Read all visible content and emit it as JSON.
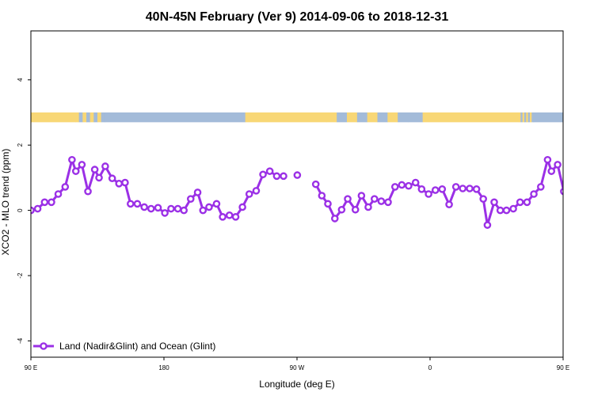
{
  "chart_data": {
    "type": "line",
    "title": "40N-45N February (Ver 9)   2014-09-06 to 2018-12-31",
    "xlabel": "Longitude (deg E)",
    "ylabel": "XCO2 - MLO trend (ppm)",
    "xlim": [
      90,
      450
    ],
    "ylim": [
      -4.5,
      5.5
    ],
    "xticks": [
      {
        "value": 90,
        "label": "90 E"
      },
      {
        "value": 180,
        "label": "180"
      },
      {
        "value": 270,
        "label": "90 W"
      },
      {
        "value": 360,
        "label": "0"
      },
      {
        "value": 450,
        "label": "90 E"
      },
      {
        "value": 540,
        "label": "180"
      }
    ],
    "yticks": [
      {
        "value": -4,
        "label": "-4"
      },
      {
        "value": -2,
        "label": "-2"
      },
      {
        "value": 0,
        "label": "0"
      },
      {
        "value": 2,
        "label": "2"
      },
      {
        "value": 4,
        "label": "4"
      }
    ],
    "grid": false,
    "legend_position": "bottom-left",
    "colors": {
      "series": "#9b30e6",
      "land": "#f8d776",
      "ocean": "#a3bbd9"
    },
    "land_ocean_strip": {
      "y_range": [
        2.7,
        3.0
      ],
      "segments": [
        {
          "x0": 90,
          "x1": 120,
          "type": "land"
        },
        {
          "x0": 120,
          "x1": 140,
          "type": "mixed"
        },
        {
          "x0": 140,
          "x1": 235,
          "type": "ocean"
        },
        {
          "x0": 235,
          "x1": 290,
          "type": "land"
        },
        {
          "x0": 290,
          "x1": 345,
          "type": "mixed"
        },
        {
          "x0": 345,
          "x1": 355,
          "type": "ocean"
        },
        {
          "x0": 355,
          "x1": 420,
          "type": "land"
        },
        {
          "x0": 420,
          "x1": 430,
          "type": "mixed"
        },
        {
          "x0": 430,
          "x1": 450,
          "type": "ocean"
        }
      ]
    },
    "series": [
      {
        "name": "Land (Nadir&Glint) and Ocean (Glint)",
        "points": [
          [
            90,
            0.0
          ],
          [
            94.6,
            0.05
          ],
          [
            99.3,
            0.25
          ],
          [
            103.9,
            0.25
          ],
          [
            108.5,
            0.5
          ],
          [
            113.2,
            0.72
          ],
          [
            117.8,
            1.55
          ],
          [
            120.4,
            1.2
          ],
          [
            124.5,
            1.4
          ],
          [
            128.6,
            0.58
          ],
          [
            133.2,
            1.25
          ],
          [
            136.1,
            1.0
          ],
          [
            140.3,
            1.35
          ],
          [
            145.0,
            0.98
          ],
          [
            149.6,
            0.82
          ],
          [
            153.7,
            0.85
          ],
          [
            157.4,
            0.2
          ],
          [
            162.0,
            0.2
          ],
          [
            166.7,
            0.1
          ],
          [
            171.3,
            0.05
          ],
          [
            176.0,
            0.08
          ],
          [
            180.6,
            -0.08
          ],
          [
            184.8,
            0.05
          ],
          [
            189.4,
            0.05
          ],
          [
            193.5,
            0.0
          ],
          [
            198.1,
            0.35
          ],
          [
            202.8,
            0.55
          ],
          [
            206.4,
            0.0
          ],
          [
            210.5,
            0.1
          ],
          [
            215.6,
            0.2
          ],
          [
            219.7,
            -0.2
          ],
          [
            224.3,
            -0.15
          ],
          [
            228.5,
            -0.2
          ],
          [
            233.1,
            0.1
          ],
          [
            237.7,
            0.5
          ],
          [
            242.4,
            0.6
          ],
          [
            247.0,
            1.1
          ],
          [
            251.6,
            1.2
          ],
          [
            256.3,
            1.05
          ],
          [
            260.9,
            1.05
          ],
          [
            270.2,
            1.08
          ],
          [
            282.7,
            0.8
          ],
          [
            286.8,
            0.45
          ],
          [
            290.9,
            0.2
          ],
          [
            295.6,
            -0.25
          ],
          [
            300.2,
            0.02
          ],
          [
            304.3,
            0.35
          ],
          [
            309.5,
            0.02
          ],
          [
            313.6,
            0.45
          ],
          [
            318.2,
            0.1
          ],
          [
            322.4,
            0.35
          ],
          [
            327.0,
            0.28
          ],
          [
            331.6,
            0.25
          ],
          [
            336.3,
            0.72
          ],
          [
            340.9,
            0.78
          ],
          [
            345.5,
            0.75
          ],
          [
            350.2,
            0.85
          ],
          [
            354.3,
            0.65
          ],
          [
            359.0,
            0.5
          ],
          [
            363.6,
            0.62
          ],
          [
            368.2,
            0.65
          ],
          [
            372.9,
            0.18
          ],
          [
            377.5,
            0.72
          ],
          [
            382.1,
            0.67
          ],
          [
            386.8,
            0.67
          ],
          [
            391.4,
            0.65
          ],
          [
            396.0,
            0.35
          ],
          [
            398.8,
            -0.45
          ],
          [
            403.4,
            0.25
          ],
          [
            407.5,
            0.0
          ],
          [
            411.7,
            0.0
          ],
          [
            416.3,
            0.05
          ],
          [
            420.9,
            0.25
          ],
          [
            425.6,
            0.25
          ],
          [
            430.2,
            0.5
          ],
          [
            434.9,
            0.72
          ],
          [
            439.5,
            1.55
          ],
          [
            442.1,
            1.2
          ],
          [
            446.3,
            1.4
          ],
          [
            450.5,
            0.58
          ],
          [
            455.0,
            1.2
          ]
        ]
      }
    ]
  }
}
